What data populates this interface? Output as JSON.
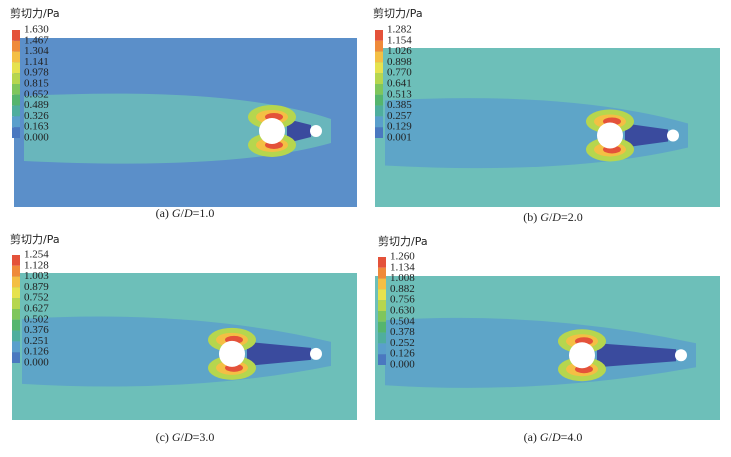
{
  "panels": [
    {
      "title": "剪切力/Pa",
      "colorbar": [
        "1.630",
        "1.467",
        "1.304",
        "1.141",
        "0.978",
        "0.815",
        "0.652",
        "0.489",
        "0.326",
        "0.163",
        "0.000"
      ],
      "caption": [
        "(a) ",
        "G",
        "/",
        "D",
        "=1.0"
      ]
    },
    {
      "title": "剪切力/Pa",
      "colorbar": [
        "1.282",
        "1.154",
        "1.026",
        "0.898",
        "0.770",
        "0.641",
        "0.513",
        "0.385",
        "0.257",
        "0.129",
        "0.001"
      ],
      "caption": [
        "(b) ",
        "G",
        "/",
        "D",
        "=2.0"
      ]
    },
    {
      "title": "剪切力/Pa",
      "colorbar": [
        "1.254",
        "1.128",
        "1.003",
        "0.879",
        "0.752",
        "0.627",
        "0.502",
        "0.376",
        "0.251",
        "0.126",
        "0.000"
      ],
      "caption": [
        "(c) ",
        "G",
        "/",
        "D",
        "=3.0"
      ]
    },
    {
      "title": "剪切力/Pa",
      "colorbar": [
        "1.260",
        "1.134",
        "1.008",
        "0.882",
        "0.756",
        "0.630",
        "0.504",
        "0.378",
        "0.252",
        "0.126",
        "0.000"
      ],
      "caption": [
        "(a) ",
        "G",
        "/",
        "D",
        "=4.0"
      ]
    }
  ]
}
